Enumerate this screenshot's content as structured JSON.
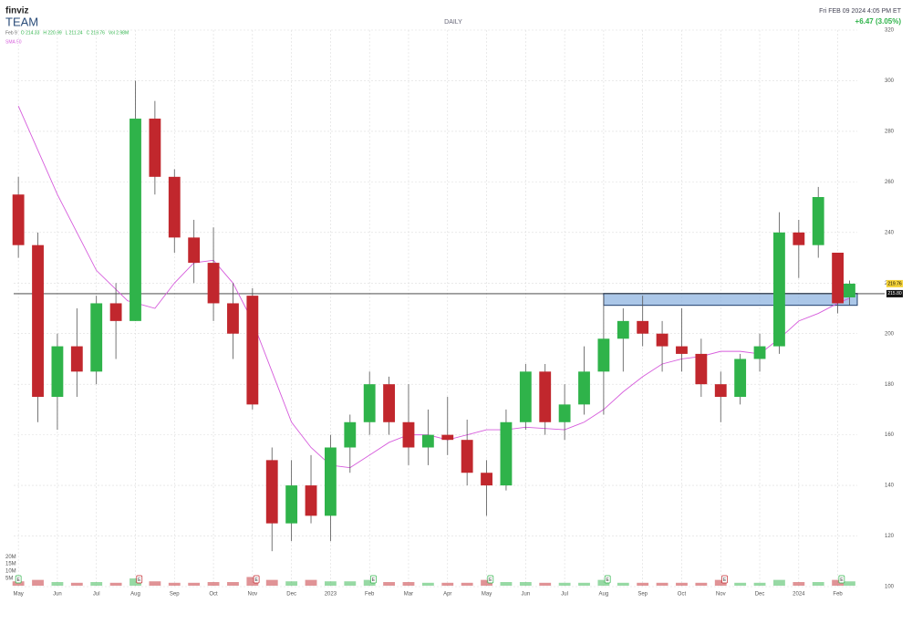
{
  "chart_data": {
    "type": "candlestick",
    "brand": "finviz",
    "title": "TEAM",
    "period": "DAILY",
    "datetime": "Fri FEB 09 2024 4:05 PM ET",
    "change": "+6.47 (3.05%)",
    "info": [
      "Feb 9",
      "O 214.33",
      "H 220.99",
      "L 211.24",
      "C 219.76",
      "Vol 2.98M"
    ],
    "x": [
      0,
      0.5,
      1,
      1.5,
      2,
      2.5,
      3,
      3.5,
      4,
      4.5,
      5,
      5.5,
      6,
      6.5,
      7,
      7.5,
      8,
      8.5,
      9,
      9.5,
      10,
      10.5,
      11,
      11.5,
      12,
      12.5,
      13,
      13.5,
      14,
      14.5,
      15,
      15.5,
      16,
      16.5,
      17,
      17.5,
      18,
      18.5,
      19,
      19.5,
      20,
      20.5,
      21,
      21.3
    ],
    "open": [
      255,
      235,
      175,
      195,
      185,
      212,
      205,
      285,
      262,
      238,
      228,
      212,
      215,
      150,
      125,
      140,
      128,
      155,
      165,
      180,
      165,
      155,
      160,
      158,
      145,
      140,
      165,
      185,
      165,
      172,
      185,
      198,
      205,
      200,
      195,
      192,
      180,
      175,
      190,
      195,
      240,
      235,
      232,
      214.33
    ],
    "high": [
      262,
      240,
      200,
      210,
      215,
      220,
      300,
      292,
      265,
      245,
      242,
      220,
      218,
      155,
      150,
      152,
      160,
      168,
      185,
      183,
      180,
      170,
      175,
      166,
      150,
      170,
      188,
      188,
      180,
      195,
      215,
      210,
      215,
      205,
      210,
      198,
      185,
      192,
      200,
      248,
      245,
      258,
      232,
      220.99
    ],
    "low": [
      230,
      165,
      162,
      175,
      180,
      190,
      205,
      255,
      232,
      220,
      205,
      190,
      170,
      114,
      118,
      125,
      118,
      145,
      160,
      160,
      148,
      148,
      152,
      140,
      128,
      138,
      162,
      160,
      158,
      168,
      168,
      185,
      195,
      185,
      185,
      175,
      165,
      172,
      185,
      192,
      222,
      230,
      208,
      211.24
    ],
    "close": [
      235,
      175,
      195,
      185,
      212,
      205,
      285,
      262,
      238,
      228,
      212,
      200,
      172,
      125,
      140,
      128,
      155,
      165,
      180,
      165,
      155,
      160,
      158,
      145,
      140,
      165,
      185,
      165,
      172,
      185,
      198,
      205,
      200,
      195,
      192,
      180,
      175,
      190,
      195,
      240,
      235,
      254,
      212,
      219.76
    ],
    "volume": [
      3,
      4,
      2.5,
      2,
      2.5,
      2,
      5,
      3,
      2,
      2,
      2.5,
      2.5,
      6,
      4,
      3,
      4,
      3,
      3,
      4,
      2.5,
      2.5,
      2,
      2,
      2,
      4,
      2.5,
      2.5,
      2,
      2,
      2,
      4,
      2,
      2,
      2,
      2,
      2,
      4,
      2,
      2,
      4,
      2.5,
      2.5,
      4,
      2.98
    ],
    "up_color": "#2fb34a",
    "down_color": "#c1272d",
    "sma": {
      "name": "SMA 50",
      "color": "#d65cdc",
      "x": [
        0,
        1,
        2,
        2.8,
        3.5,
        4,
        4.5,
        5,
        5.5,
        6,
        6.5,
        7,
        7.5,
        8,
        8.5,
        9,
        9.5,
        10,
        10.5,
        11,
        11.5,
        12,
        12.5,
        13,
        14,
        14.5,
        15,
        15.5,
        16,
        16.5,
        17,
        17.5,
        18,
        18.5,
        19,
        19.5,
        20,
        20.5,
        21,
        21.3
      ],
      "values": [
        290,
        255,
        225,
        213,
        210,
        220,
        228,
        229,
        220,
        205,
        185,
        165,
        155,
        148,
        147,
        152,
        157,
        160,
        160,
        158,
        160,
        162,
        162,
        163,
        162,
        165,
        170,
        177,
        183,
        188,
        190,
        191,
        193,
        193,
        192,
        198,
        205,
        208,
        212,
        214
      ]
    },
    "level": {
      "value": 215.8,
      "label": "215.80"
    },
    "zone": {
      "x": [
        15,
        21.5
      ],
      "y": [
        211.2,
        215.9
      ],
      "color": "#8fb4e0"
    },
    "last_price": 219.76,
    "xlim": [
      -0.12,
      21.5
    ],
    "xticks": [
      {
        "value": 0,
        "label": "May"
      },
      {
        "value": 1,
        "label": "Jun"
      },
      {
        "value": 2,
        "label": "Jul"
      },
      {
        "value": 3,
        "label": "Aug"
      },
      {
        "value": 4,
        "label": "Sep"
      },
      {
        "value": 5,
        "label": "Oct"
      },
      {
        "value": 6,
        "label": "Nov"
      },
      {
        "value": 7,
        "label": "Dec"
      },
      {
        "value": 8,
        "label": "2023"
      },
      {
        "value": 9,
        "label": "Feb"
      },
      {
        "value": 10,
        "label": "Mar"
      },
      {
        "value": 11,
        "label": "Apr"
      },
      {
        "value": 12,
        "label": "May"
      },
      {
        "value": 13,
        "label": "Jun"
      },
      {
        "value": 14,
        "label": "Jul"
      },
      {
        "value": 15,
        "label": "Aug"
      },
      {
        "value": 16,
        "label": "Sep"
      },
      {
        "value": 17,
        "label": "Oct"
      },
      {
        "value": 18,
        "label": "Nov"
      },
      {
        "value": 19,
        "label": "Dec"
      },
      {
        "value": 20,
        "label": "2024"
      },
      {
        "value": 21,
        "label": "Feb"
      }
    ],
    "ylim": [
      100,
      320
    ],
    "yticks": [
      100,
      120,
      140,
      160,
      180,
      200,
      220,
      240,
      260,
      280,
      300,
      320
    ],
    "vol_ylim": [
      0,
      22
    ],
    "vol_ticks": [
      {
        "value": 5,
        "label": "5M"
      },
      {
        "value": 10,
        "label": "10M"
      },
      {
        "value": 15,
        "label": "15M"
      },
      {
        "value": 20,
        "label": "20M"
      }
    ],
    "earnings": {
      "label": "E",
      "x": [
        0,
        3.1,
        6.1,
        9.1,
        12.1,
        15.1,
        18.1,
        21.1
      ]
    },
    "grid": true
  }
}
